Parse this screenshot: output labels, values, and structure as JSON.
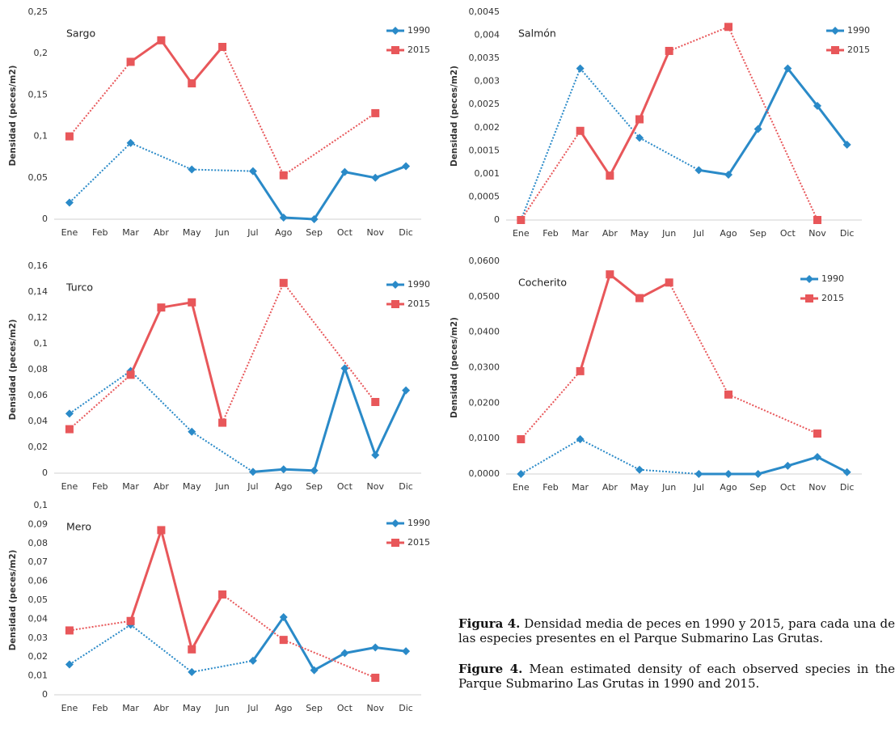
{
  "chart_data": [
    {
      "type": "line",
      "title": "Sargo",
      "y_label": "Densidad (peces/m2)",
      "categories": [
        "Ene",
        "Feb",
        "Mar",
        "Abr",
        "May",
        "Jun",
        "Jul",
        "Ago",
        "Sep",
        "Oct",
        "Nov",
        "Dic"
      ],
      "ylim": [
        0,
        0.25
      ],
      "yticks": [
        0,
        {
          "value": 0.05,
          "label": "0,05"
        },
        {
          "value": 0.1,
          "label": "0,1"
        },
        {
          "value": 0.15,
          "label": "0,15"
        },
        {
          "value": 0.2,
          "label": "0,2"
        },
        {
          "value": 0.25,
          "label": "0,25"
        }
      ],
      "series": [
        {
          "name": "1990",
          "color": "#2a8ac8",
          "values": [
            0.02,
            null,
            0.092,
            null,
            0.06,
            null,
            0.058,
            0.002,
            0,
            0.057,
            0.05,
            0.064
          ]
        },
        {
          "name": "2015",
          "color": "#e8575a",
          "values": [
            0.1,
            null,
            0.19,
            0.216,
            0.164,
            0.208,
            null,
            0.053,
            null,
            null,
            0.128,
            null
          ]
        }
      ]
    },
    {
      "type": "line",
      "title": "Salmón",
      "y_label": "Densidad (peces/m2)",
      "categories": [
        "Ene",
        "Feb",
        "Mar",
        "Abr",
        "May",
        "Jun",
        "Jul",
        "Ago",
        "Sep",
        "Oct",
        "Nov",
        "Dic"
      ],
      "ylim": [
        0,
        0.0045
      ],
      "yticks": [
        0,
        {
          "value": 0.0005,
          "label": "0,0005"
        },
        {
          "value": 0.001,
          "label": "0,001"
        },
        {
          "value": 0.0015,
          "label": "0,0015"
        },
        {
          "value": 0.002,
          "label": "0,002"
        },
        {
          "value": 0.0025,
          "label": "0,0025"
        },
        {
          "value": 0.003,
          "label": "0,003"
        },
        {
          "value": 0.0035,
          "label": "0,0035"
        },
        {
          "value": 0.004,
          "label": "0,004"
        },
        {
          "value": 0.0045,
          "label": "0,0045"
        }
      ],
      "series": [
        {
          "name": "1990",
          "color": "#2a8ac8",
          "values": [
            0,
            null,
            0.00328,
            null,
            0.00178,
            null,
            0.00108,
            0.00098,
            0.00197,
            0.00328,
            0.00247,
            0.00163
          ]
        },
        {
          "name": "2015",
          "color": "#e8575a",
          "values": [
            0,
            null,
            0.00193,
            0.00096,
            0.00218,
            0.00366,
            null,
            0.00418,
            null,
            null,
            0,
            null
          ]
        }
      ]
    },
    {
      "type": "line",
      "title": "Turco",
      "y_label": "Densidad (peces/m2)",
      "categories": [
        "Ene",
        "Feb",
        "Mar",
        "Abr",
        "May",
        "Jun",
        "Jul",
        "Ago",
        "Sep",
        "Oct",
        "Nov",
        "Dic"
      ],
      "ylim": [
        0,
        0.16
      ],
      "yticks": [
        0,
        {
          "value": 0.02,
          "label": "0,02"
        },
        {
          "value": 0.04,
          "label": "0,04"
        },
        {
          "value": 0.06,
          "label": "0,06"
        },
        {
          "value": 0.08,
          "label": "0,08"
        },
        {
          "value": 0.1,
          "label": "0,1"
        },
        {
          "value": 0.12,
          "label": "0,12"
        },
        {
          "value": 0.14,
          "label": "0,14"
        },
        {
          "value": 0.16,
          "label": "0,16"
        }
      ],
      "series": [
        {
          "name": "1990",
          "color": "#2a8ac8",
          "values": [
            0.046,
            null,
            0.079,
            null,
            0.032,
            null,
            0.001,
            0.003,
            0.002,
            0.081,
            0.014,
            0.064
          ]
        },
        {
          "name": "2015",
          "color": "#e8575a",
          "values": [
            0.034,
            null,
            0.076,
            0.128,
            0.132,
            0.039,
            null,
            0.147,
            null,
            null,
            0.055,
            null
          ]
        }
      ]
    },
    {
      "type": "line",
      "title": "Cocherito",
      "y_label": "Densidad (peces/m2)",
      "categories": [
        "Ene",
        "Feb",
        "Mar",
        "Abr",
        "May",
        "Jun",
        "Jul",
        "Ago",
        "Sep",
        "Oct",
        "Nov",
        "Dic"
      ],
      "ylim": [
        0,
        0.06
      ],
      "yticks": [
        {
          "value": 0,
          "label": "0,0000"
        },
        {
          "value": 0.01,
          "label": "0,0100"
        },
        {
          "value": 0.02,
          "label": "0,0200"
        },
        {
          "value": 0.03,
          "label": "0,0300"
        },
        {
          "value": 0.04,
          "label": "0,0400"
        },
        {
          "value": 0.05,
          "label": "0,0500"
        },
        {
          "value": 0.06,
          "label": "0,0600"
        }
      ],
      "series": [
        {
          "name": "1990",
          "color": "#2a8ac8",
          "values": [
            0,
            null,
            0.0098,
            null,
            0.0012,
            null,
            0,
            0,
            0,
            0.0023,
            0.0048,
            0.0005
          ]
        },
        {
          "name": "2015",
          "color": "#e8575a",
          "values": [
            0.0098,
            null,
            0.029,
            0.0563,
            0.0496,
            0.054,
            null,
            0.0224,
            null,
            null,
            0.0114,
            null
          ]
        }
      ]
    },
    {
      "type": "line",
      "title": "Mero",
      "y_label": "Densidad (peces/m2)",
      "categories": [
        "Ene",
        "Feb",
        "Mar",
        "Abr",
        "May",
        "Jun",
        "Jul",
        "Ago",
        "Sep",
        "Oct",
        "Nov",
        "Dic"
      ],
      "ylim": [
        0,
        0.1
      ],
      "yticks": [
        0,
        {
          "value": 0.01,
          "label": "0,01"
        },
        {
          "value": 0.02,
          "label": "0,02"
        },
        {
          "value": 0.03,
          "label": "0,03"
        },
        {
          "value": 0.04,
          "label": "0,04"
        },
        {
          "value": 0.05,
          "label": "0,05"
        },
        {
          "value": 0.06,
          "label": "0,06"
        },
        {
          "value": 0.07,
          "label": "0,07"
        },
        {
          "value": 0.08,
          "label": "0,08"
        },
        {
          "value": 0.09,
          "label": "0,09"
        },
        {
          "value": 0.1,
          "label": "0,1"
        }
      ],
      "series": [
        {
          "name": "1990",
          "color": "#2a8ac8",
          "values": [
            0.016,
            null,
            0.037,
            null,
            0.012,
            null,
            0.018,
            0.041,
            0.013,
            0.022,
            0.025,
            0.023
          ]
        },
        {
          "name": "2015",
          "color": "#e8575a",
          "values": [
            0.034,
            null,
            0.039,
            0.087,
            0.024,
            0.053,
            null,
            0.029,
            null,
            null,
            0.009,
            null
          ]
        }
      ]
    }
  ],
  "caption": {
    "es": {
      "label": "Figura 4.",
      "text": "Densidad media de peces en 1990 y 2015, para cada una de las especies presentes en el Parque Submarino Las Grutas."
    },
    "en": {
      "label": "Figure 4.",
      "text": "Mean estimated density of each observed species in the Parque Submarino Las Grutas in 1990 and 2015."
    }
  }
}
